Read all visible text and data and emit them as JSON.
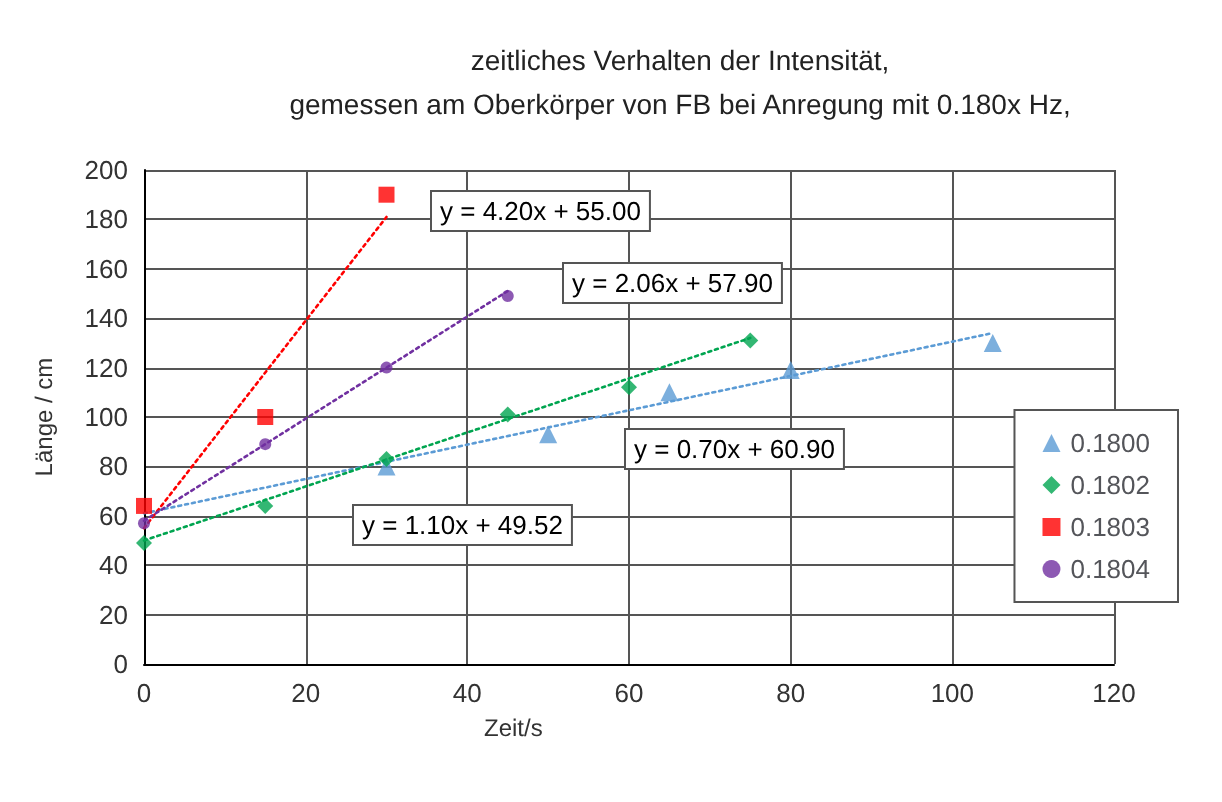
{
  "chart_data": {
    "type": "scatter",
    "title": "zeitliches Verhalten der Intensität,\ngemessen am Oberkörper von FB bei Anregung mit 0.180x Hz,",
    "xlabel": "Zeit/s",
    "ylabel": "Länge / cm",
    "xlim": [
      0,
      120
    ],
    "xticks": [
      0,
      20,
      40,
      60,
      80,
      100,
      120
    ],
    "ylim": [
      0,
      200
    ],
    "yticks": [
      0,
      20,
      40,
      60,
      80,
      100,
      120,
      140,
      160,
      180,
      200
    ],
    "grid": true,
    "legend": "right",
    "series": [
      {
        "name": "0.1800",
        "color": "#5b9bd5",
        "marker": "triangle",
        "x": [
          30,
          50,
          65,
          80,
          105
        ],
        "values": [
          80,
          93,
          110,
          119,
          130
        ]
      },
      {
        "name": "0.1802",
        "color": "#00a550",
        "marker": "diamond",
        "x": [
          0,
          15,
          30,
          45,
          60,
          75
        ],
        "values": [
          49,
          64,
          83,
          101,
          112,
          131
        ]
      },
      {
        "name": "0.1803",
        "color": "#ff0000",
        "marker": "square",
        "x": [
          0,
          15,
          30
        ],
        "values": [
          64,
          100,
          190
        ]
      },
      {
        "name": "0.1804",
        "color": "#7030a0",
        "marker": "circle",
        "x": [
          0,
          15,
          30,
          45
        ],
        "values": [
          57,
          89,
          120,
          149
        ]
      },
      {
        "type": "line",
        "color": "#5b9bd5",
        "line_style": "dotted",
        "marker": "none",
        "x": [
          0,
          105
        ],
        "values": [
          61,
          134
        ]
      },
      {
        "type": "line",
        "color": "#00a550",
        "line_style": "dotted",
        "marker": "none",
        "x": [
          0,
          75
        ],
        "values": [
          50,
          132
        ]
      },
      {
        "type": "line",
        "color": "#ff0000",
        "line_style": "dotted",
        "marker": "none",
        "x": [
          0,
          30
        ],
        "values": [
          55,
          181
        ]
      },
      {
        "type": "line",
        "color": "#7030a0",
        "line_style": "dotted",
        "marker": "none",
        "x": [
          0,
          45
        ],
        "values": [
          58,
          151
        ]
      }
    ],
    "annotations": [
      "y = 4.20x + 55.00",
      "y = 2.06x + 57.90",
      "y = 0.70x + 60.90",
      "y = 1.10x + 49.52"
    ]
  }
}
